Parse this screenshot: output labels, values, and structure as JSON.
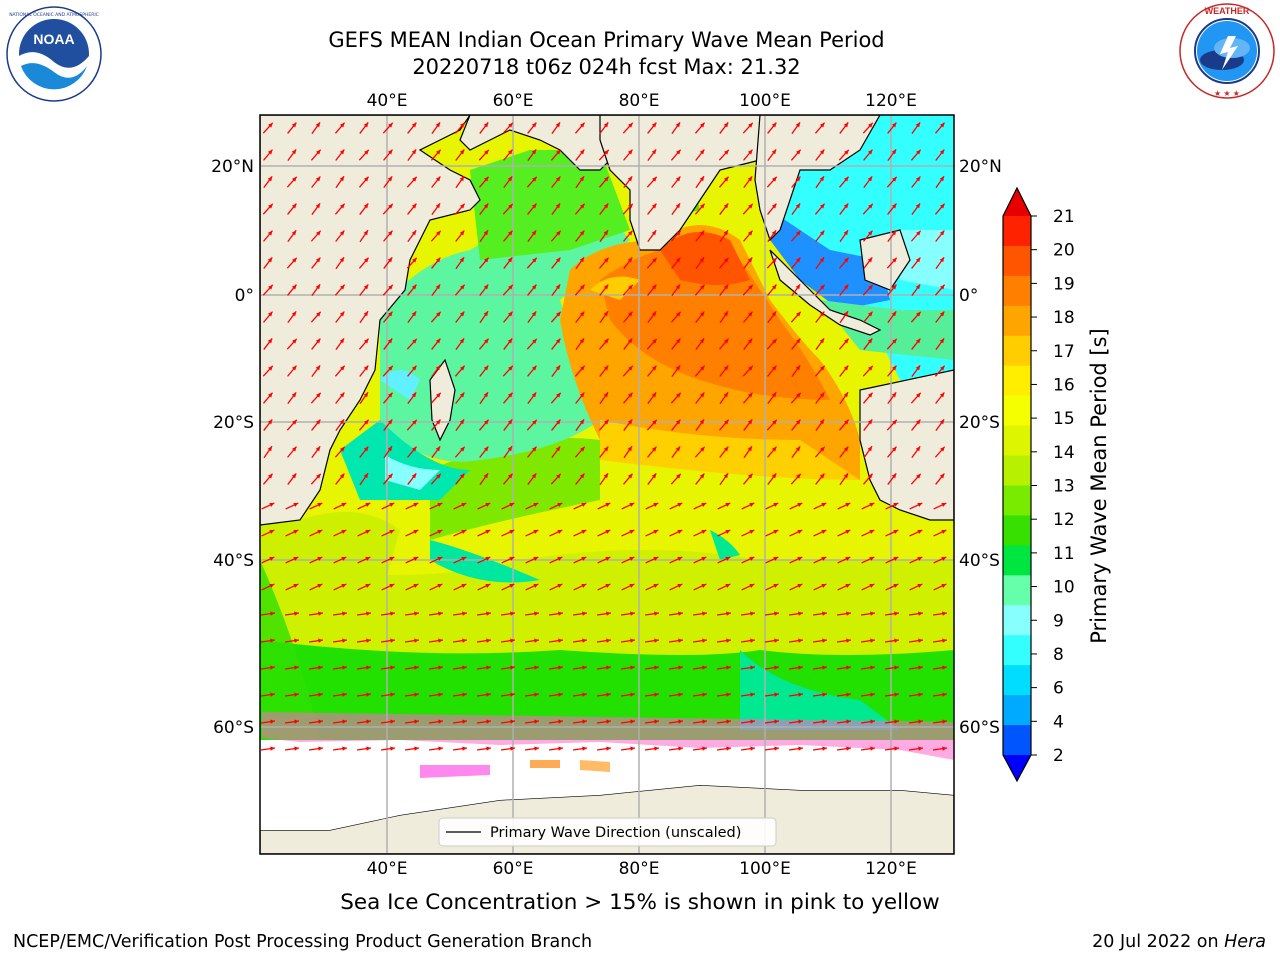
{
  "header": {
    "title_line1": "GEFS MEAN Indian Ocean Primary Wave Mean Period",
    "title_line2": "20220718 t06z 024h fcst   Max: 21.32"
  },
  "logos": {
    "left": {
      "icon": "noaa-logo",
      "text": "NOAA",
      "ring_text": "NATIONAL OCEANIC AND ATMOSPHERIC ADMINISTRATION · U.S. DEPARTMENT OF COMMERCE"
    },
    "right": {
      "icon": "nws-logo",
      "ring_text": "NATIONAL WEATHER SERVICE"
    }
  },
  "map": {
    "lon_ticks": [
      "40°E",
      "60°E",
      "80°E",
      "100°E",
      "120°E"
    ],
    "lat_ticks_left": [
      "20°N",
      "0°",
      "20°S",
      "40°S",
      "60°S"
    ],
    "lat_ticks_right": [
      "20°N",
      "0°",
      "20°S",
      "40°S",
      "60°S"
    ],
    "legend_label": "Primary Wave Direction (unscaled)",
    "arrow_color": "#ff0000",
    "land_color": "#efecdc",
    "ice_color": "#ffffff"
  },
  "colorbar": {
    "label": "Primary Wave Mean Period [s]",
    "ticks": [
      "21",
      "20",
      "19",
      "18",
      "17",
      "16",
      "15",
      "14",
      "13",
      "12",
      "11",
      "10",
      "9",
      "8",
      "6",
      "4",
      "2"
    ],
    "colors_top_to_bottom": [
      "#ff2200",
      "#ff5500",
      "#ff7f00",
      "#ffa500",
      "#ffcd00",
      "#ffee00",
      "#f5ff00",
      "#ddf500",
      "#b7f000",
      "#78eb00",
      "#38e000",
      "#00e640",
      "#66ffaa",
      "#88ffff",
      "#33ffff",
      "#00ddff",
      "#00aaff",
      "#0055ff"
    ],
    "over_color": "#e60000",
    "under_color": "#0000ff"
  },
  "caption": "Sea Ice Concentration > 15% is shown in pink to yellow",
  "footer": {
    "left": "NCEP/EMC/Verification Post Processing Product Generation Branch",
    "right_prefix": "20 Jul 2022 on ",
    "right_host": "Hera"
  }
}
